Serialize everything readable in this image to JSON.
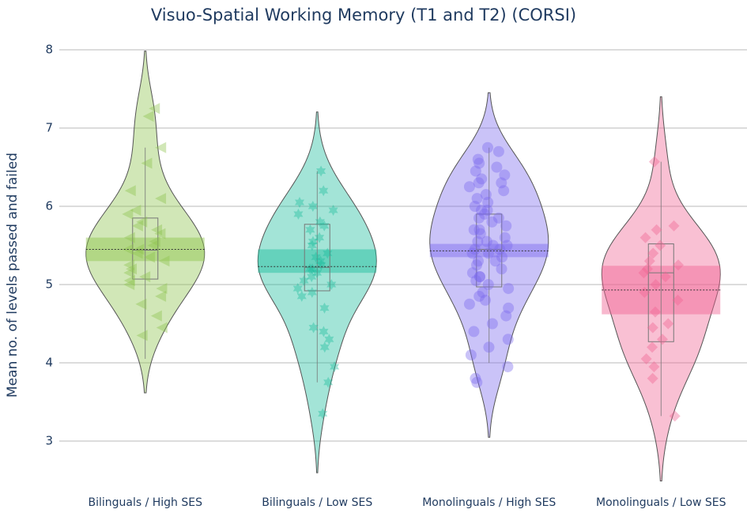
{
  "chart_data": {
    "type": "violin",
    "title": "Visuo-Spatial Working Memory (T1 and T2) (CORSI)",
    "y_label": "Mean no. of levels passed and failed",
    "ylim": [
      2.4,
      8.1
    ],
    "yticks": [
      3,
      4,
      5,
      6,
      7,
      8
    ],
    "grid": true,
    "series": [
      {
        "name": "Bilinguals / High SES",
        "color": "#8bc34a",
        "marker": "triangle",
        "q1": 5.07,
        "median": 5.44,
        "q3": 5.85,
        "mean": 5.45,
        "mean_ci": [
          5.3,
          5.6
        ],
        "whisker_low": 4.05,
        "whisker_high": 6.75,
        "values": [
          7.25,
          7.15,
          6.75,
          6.55,
          6.2,
          6.1,
          5.95,
          5.9,
          5.8,
          5.75,
          5.7,
          5.65,
          5.6,
          5.55,
          5.5,
          5.45,
          5.45,
          5.4,
          5.35,
          5.3,
          5.25,
          5.2,
          5.15,
          5.1,
          5.05,
          5.0,
          4.95,
          4.85,
          4.75,
          4.6,
          4.45,
          4.35
        ]
      },
      {
        "name": "Bilinguals / Low SES",
        "color": "#1abc9c",
        "marker": "star",
        "q1": 4.92,
        "median": 5.22,
        "q3": 5.77,
        "mean": 5.23,
        "mean_ci": [
          5.15,
          5.45
        ],
        "whisker_low": 3.75,
        "whisker_high": 6.45,
        "values": [
          6.45,
          6.2,
          6.05,
          6.0,
          5.95,
          5.9,
          5.8,
          5.75,
          5.7,
          5.6,
          5.55,
          5.5,
          5.4,
          5.35,
          5.3,
          5.25,
          5.2,
          5.2,
          5.15,
          5.1,
          5.05,
          5.0,
          4.95,
          4.9,
          4.85,
          4.7,
          4.45,
          4.4,
          4.3,
          4.2,
          3.95,
          3.75,
          3.35
        ]
      },
      {
        "name": "Monolinguals / High SES",
        "color": "#7b68ee",
        "marker": "circle",
        "q1": 4.97,
        "median": 5.45,
        "q3": 5.9,
        "mean": 5.43,
        "mean_ci": [
          5.35,
          5.52
        ],
        "whisker_low": 4.0,
        "whisker_high": 6.75,
        "values": [
          6.75,
          6.7,
          6.6,
          6.55,
          6.5,
          6.45,
          6.4,
          6.35,
          6.3,
          6.3,
          6.25,
          6.2,
          6.15,
          6.1,
          6.05,
          6.0,
          5.95,
          5.95,
          5.9,
          5.85,
          5.85,
          5.8,
          5.75,
          5.7,
          5.7,
          5.65,
          5.6,
          5.55,
          5.55,
          5.5,
          5.5,
          5.45,
          5.45,
          5.4,
          5.4,
          5.35,
          5.3,
          5.3,
          5.25,
          5.2,
          5.15,
          5.1,
          5.1,
          5.05,
          5.0,
          4.95,
          4.9,
          4.85,
          4.8,
          4.75,
          4.7,
          4.6,
          4.5,
          4.4,
          4.3,
          4.2,
          4.1,
          3.95,
          3.8,
          3.75
        ]
      },
      {
        "name": "Monolinguals / Low SES",
        "color": "#f06292",
        "marker": "diamond",
        "q1": 4.27,
        "median": 5.15,
        "q3": 5.52,
        "mean": 4.93,
        "mean_ci": [
          4.62,
          5.24
        ],
        "whisker_low": 3.32,
        "whisker_high": 6.57,
        "values": [
          6.57,
          5.75,
          5.7,
          5.6,
          5.5,
          5.4,
          5.3,
          5.25,
          5.2,
          5.15,
          5.1,
          5.0,
          4.9,
          4.8,
          4.65,
          4.5,
          4.45,
          4.3,
          4.2,
          4.05,
          3.95,
          3.8,
          3.32
        ]
      }
    ]
  }
}
